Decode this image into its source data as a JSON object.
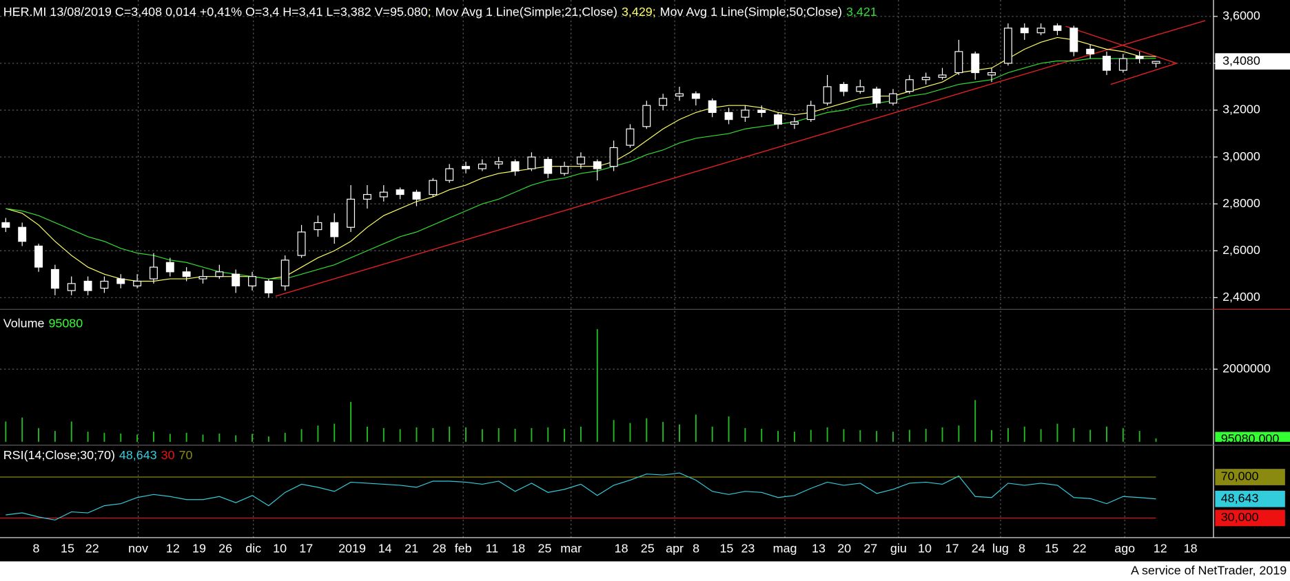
{
  "footer": "A service of NetTrader, 2019",
  "chart_data": [
    {
      "type": "candlestick",
      "info": "HER.MI 13/08/2019 C=3,408 0,014 +0,41% O=3,4 H=3,41 L=3,382 V=95.080",
      "separator": ";",
      "candle_color": "#ffffff",
      "ohlc": [
        [
          2.72,
          2.74,
          2.68,
          2.7
        ],
        [
          2.7,
          2.72,
          2.62,
          2.64
        ],
        [
          2.62,
          2.63,
          2.51,
          2.53
        ],
        [
          2.52,
          2.54,
          2.41,
          2.44
        ],
        [
          2.43,
          2.49,
          2.41,
          2.46
        ],
        [
          2.47,
          2.49,
          2.41,
          2.43
        ],
        [
          2.44,
          2.49,
          2.42,
          2.47
        ],
        [
          2.48,
          2.5,
          2.44,
          2.46
        ],
        [
          2.45,
          2.5,
          2.44,
          2.47
        ],
        [
          2.48,
          2.59,
          2.46,
          2.53
        ],
        [
          2.55,
          2.57,
          2.49,
          2.51
        ],
        [
          2.51,
          2.53,
          2.47,
          2.49
        ],
        [
          2.48,
          2.52,
          2.46,
          2.49
        ],
        [
          2.49,
          2.54,
          2.48,
          2.51
        ],
        [
          2.5,
          2.52,
          2.42,
          2.45
        ],
        [
          2.45,
          2.51,
          2.43,
          2.49
        ],
        [
          2.47,
          2.48,
          2.4,
          2.42
        ],
        [
          2.45,
          2.58,
          2.43,
          2.56
        ],
        [
          2.58,
          2.71,
          2.57,
          2.68
        ],
        [
          2.69,
          2.75,
          2.66,
          2.72
        ],
        [
          2.72,
          2.76,
          2.63,
          2.66
        ],
        [
          2.7,
          2.88,
          2.68,
          2.82
        ],
        [
          2.82,
          2.88,
          2.78,
          2.84
        ],
        [
          2.83,
          2.88,
          2.81,
          2.85
        ],
        [
          2.86,
          2.87,
          2.82,
          2.84
        ],
        [
          2.85,
          2.86,
          2.79,
          2.82
        ],
        [
          2.84,
          2.91,
          2.83,
          2.9
        ],
        [
          2.9,
          2.97,
          2.89,
          2.95
        ],
        [
          2.96,
          2.98,
          2.93,
          2.95
        ],
        [
          2.95,
          2.99,
          2.94,
          2.97
        ],
        [
          2.97,
          3.0,
          2.95,
          2.98
        ],
        [
          2.98,
          2.99,
          2.92,
          2.94
        ],
        [
          2.95,
          3.02,
          2.94,
          3.0
        ],
        [
          2.99,
          3.0,
          2.91,
          2.93
        ],
        [
          2.93,
          2.98,
          2.92,
          2.96
        ],
        [
          2.97,
          3.02,
          2.95,
          3.0
        ],
        [
          2.98,
          2.99,
          2.9,
          2.95
        ],
        [
          2.96,
          3.07,
          2.94,
          3.04
        ],
        [
          3.05,
          3.14,
          3.04,
          3.12
        ],
        [
          3.13,
          3.24,
          3.12,
          3.22
        ],
        [
          3.22,
          3.27,
          3.2,
          3.25
        ],
        [
          3.26,
          3.3,
          3.24,
          3.27
        ],
        [
          3.27,
          3.28,
          3.22,
          3.25
        ],
        [
          3.24,
          3.25,
          3.17,
          3.19
        ],
        [
          3.19,
          3.21,
          3.14,
          3.16
        ],
        [
          3.17,
          3.22,
          3.15,
          3.2
        ],
        [
          3.2,
          3.22,
          3.17,
          3.19
        ],
        [
          3.18,
          3.19,
          3.12,
          3.14
        ],
        [
          3.14,
          3.17,
          3.12,
          3.15
        ],
        [
          3.16,
          3.24,
          3.15,
          3.22
        ],
        [
          3.23,
          3.35,
          3.22,
          3.3
        ],
        [
          3.31,
          3.32,
          3.26,
          3.28
        ],
        [
          3.28,
          3.33,
          3.27,
          3.3
        ],
        [
          3.29,
          3.3,
          3.21,
          3.23
        ],
        [
          3.23,
          3.29,
          3.22,
          3.27
        ],
        [
          3.28,
          3.35,
          3.27,
          3.33
        ],
        [
          3.33,
          3.36,
          3.31,
          3.34
        ],
        [
          3.34,
          3.38,
          3.33,
          3.35
        ],
        [
          3.36,
          3.5,
          3.35,
          3.45
        ],
        [
          3.44,
          3.45,
          3.33,
          3.36
        ],
        [
          3.35,
          3.38,
          3.32,
          3.36
        ],
        [
          3.4,
          3.57,
          3.39,
          3.55
        ],
        [
          3.55,
          3.57,
          3.5,
          3.53
        ],
        [
          3.53,
          3.57,
          3.52,
          3.55
        ],
        [
          3.56,
          3.57,
          3.52,
          3.54
        ],
        [
          3.55,
          3.56,
          3.43,
          3.45
        ],
        [
          3.46,
          3.48,
          3.42,
          3.44
        ],
        [
          3.43,
          3.45,
          3.35,
          3.37
        ],
        [
          3.37,
          3.44,
          3.36,
          3.42
        ],
        [
          3.43,
          3.45,
          3.4,
          3.42
        ],
        [
          3.4,
          3.41,
          3.382,
          3.408
        ]
      ],
      "last_label": "3,4080",
      "series": [
        {
          "name": "Mov Avg 1 Line(Simple;21;Close)",
          "color": "#ffff66",
          "legend_value": "3,429",
          "values": [
            2.78,
            2.76,
            2.71,
            2.64,
            2.58,
            2.53,
            2.5,
            2.48,
            2.47,
            2.47,
            2.48,
            2.48,
            2.49,
            2.49,
            2.49,
            2.49,
            2.48,
            2.49,
            2.53,
            2.57,
            2.6,
            2.64,
            2.7,
            2.75,
            2.78,
            2.81,
            2.83,
            2.86,
            2.88,
            2.91,
            2.93,
            2.94,
            2.95,
            2.96,
            2.96,
            2.96,
            2.96,
            2.98,
            3.02,
            3.07,
            3.12,
            3.16,
            3.19,
            3.21,
            3.22,
            3.22,
            3.21,
            3.19,
            3.18,
            3.19,
            3.21,
            3.23,
            3.25,
            3.26,
            3.26,
            3.28,
            3.3,
            3.32,
            3.36,
            3.37,
            3.38,
            3.42,
            3.46,
            3.49,
            3.51,
            3.5,
            3.48,
            3.46,
            3.45,
            3.43,
            3.429
          ]
        },
        {
          "name": "Mov Avg 1 Line(Simple;50;Close)",
          "color": "#33dd33",
          "legend_value": "3,421",
          "values": [
            2.78,
            2.77,
            2.75,
            2.72,
            2.69,
            2.66,
            2.64,
            2.61,
            2.59,
            2.58,
            2.56,
            2.55,
            2.53,
            2.51,
            2.5,
            2.49,
            2.48,
            2.48,
            2.5,
            2.52,
            2.54,
            2.57,
            2.6,
            2.63,
            2.66,
            2.68,
            2.71,
            2.74,
            2.77,
            2.8,
            2.82,
            2.85,
            2.88,
            2.9,
            2.91,
            2.93,
            2.94,
            2.96,
            2.98,
            3.01,
            3.03,
            3.06,
            3.08,
            3.09,
            3.1,
            3.12,
            3.13,
            3.14,
            3.15,
            3.17,
            3.19,
            3.2,
            3.22,
            3.23,
            3.24,
            3.26,
            3.27,
            3.29,
            3.31,
            3.32,
            3.33,
            3.36,
            3.38,
            3.4,
            3.41,
            3.41,
            3.42,
            3.42,
            3.42,
            3.42,
            3.421
          ]
        }
      ],
      "trendlines": [
        {
          "color": "#e02020",
          "x": [
            16.42,
            73.0
          ],
          "y": [
            2.406,
            3.582
          ]
        },
        {
          "color": "#e02020",
          "x": [
            64.5,
            71.26
          ],
          "y": [
            3.558,
            3.4
          ]
        },
        {
          "color": "#e02020",
          "x": [
            67.25,
            71.26
          ],
          "y": [
            3.31,
            3.4
          ]
        }
      ],
      "ylim": [
        2.35,
        3.67
      ],
      "yticks": [
        {
          "value": 3.6,
          "label": "3,6000"
        },
        {
          "value": 3.4,
          "label": "3,4000"
        },
        {
          "value": 3.2,
          "label": "3,2000"
        },
        {
          "value": 3.0,
          "label": "3,0000"
        },
        {
          "value": 2.8,
          "label": "2,8000"
        },
        {
          "value": 2.6,
          "label": "2,6000"
        },
        {
          "value": 2.4,
          "label": "2,4000"
        }
      ],
      "grid": true
    },
    {
      "type": "bar",
      "title": "Volume",
      "legend_value": "95080",
      "color": "#22bb22",
      "label_color": "#33ff33",
      "values": [
        560000,
        670000,
        380000,
        300000,
        560000,
        280000,
        250000,
        230000,
        200000,
        280000,
        220000,
        250000,
        200000,
        230000,
        180000,
        220000,
        150000,
        250000,
        350000,
        450000,
        500000,
        1100000,
        420000,
        380000,
        350000,
        400000,
        380000,
        420000,
        400000,
        350000,
        380000,
        360000,
        380000,
        400000,
        360000,
        420000,
        3100000,
        600000,
        520000,
        650000,
        550000,
        480000,
        750000,
        420000,
        700000,
        380000,
        360000,
        300000,
        280000,
        330000,
        400000,
        350000,
        320000,
        300000,
        280000,
        330000,
        360000,
        400000,
        450000,
        1150000,
        320000,
        380000,
        420000,
        350000,
        500000,
        380000,
        330000,
        420000,
        380000,
        300000,
        95080
      ],
      "last_label": "95080,000",
      "ylim": [
        0,
        3600000
      ],
      "yticks": [
        2000000
      ],
      "grid": true
    },
    {
      "type": "line",
      "title": "RSI(14;Close;30;70)",
      "color": "#33ccdd",
      "legend_value": "48,643",
      "last_label": "48,643",
      "values": [
        33,
        35,
        31,
        28,
        36,
        35,
        42,
        44,
        50,
        53,
        51,
        48,
        48,
        51,
        45,
        52,
        42,
        55,
        63,
        60,
        56,
        65,
        64,
        63,
        62,
        60,
        66,
        66,
        65,
        63,
        66,
        56,
        64,
        55,
        58,
        63,
        52,
        62,
        67,
        73,
        72,
        74,
        67,
        56,
        53,
        56,
        55,
        50,
        52,
        59,
        65,
        62,
        64,
        54,
        58,
        64,
        65,
        63,
        71,
        51,
        50,
        64,
        62,
        64,
        62,
        50,
        49,
        44,
        51,
        50,
        48.643
      ],
      "levels": [
        {
          "value": 70,
          "label": "70",
          "axis_label": "70,000",
          "color": "#8a8a10"
        },
        {
          "value": 30,
          "label": "30",
          "axis_label": "30,000",
          "color": "#ee1111"
        }
      ],
      "ylim": [
        10.8,
        100.4
      ],
      "xlim": [
        -0.35,
        73.5
      ],
      "xticks": [
        {
          "value": 1.85,
          "label": "8"
        },
        {
          "value": 3.76,
          "label": "15"
        },
        {
          "value": 5.26,
          "label": "22"
        },
        {
          "value": 8.06,
          "label": "nov"
        },
        {
          "value": 10.17,
          "label": "12"
        },
        {
          "value": 11.77,
          "label": "19"
        },
        {
          "value": 13.37,
          "label": "26"
        },
        {
          "value": 15.07,
          "label": "dic"
        },
        {
          "value": 16.68,
          "label": "10"
        },
        {
          "value": 18.28,
          "label": "17"
        },
        {
          "value": 21.08,
          "label": "2019"
        },
        {
          "value": 23.08,
          "label": "14"
        },
        {
          "value": 24.69,
          "label": "21"
        },
        {
          "value": 26.39,
          "label": "28"
        },
        {
          "value": 27.84,
          "label": "feb"
        },
        {
          "value": 29.59,
          "label": "11"
        },
        {
          "value": 31.2,
          "label": "18"
        },
        {
          "value": 32.8,
          "label": "25"
        },
        {
          "value": 34.4,
          "label": "mar"
        },
        {
          "value": 37.46,
          "label": "18"
        },
        {
          "value": 39.06,
          "label": "25"
        },
        {
          "value": 40.71,
          "label": "apr"
        },
        {
          "value": 42.01,
          "label": "8"
        },
        {
          "value": 43.87,
          "label": "15"
        },
        {
          "value": 45.17,
          "label": "23"
        },
        {
          "value": 47.42,
          "label": "mag"
        },
        {
          "value": 49.47,
          "label": "13"
        },
        {
          "value": 51.03,
          "label": "20"
        },
        {
          "value": 52.63,
          "label": "27"
        },
        {
          "value": 54.33,
          "label": "giu"
        },
        {
          "value": 55.93,
          "label": "10"
        },
        {
          "value": 57.59,
          "label": "17"
        },
        {
          "value": 59.19,
          "label": "24"
        },
        {
          "value": 60.54,
          "label": "lug"
        },
        {
          "value": 61.84,
          "label": "8"
        },
        {
          "value": 63.65,
          "label": "15"
        },
        {
          "value": 65.35,
          "label": "22"
        },
        {
          "value": 68.1,
          "label": "ago"
        },
        {
          "value": 70.26,
          "label": "12"
        },
        {
          "value": 72.1,
          "label": "18"
        }
      ],
      "grid": true
    }
  ]
}
